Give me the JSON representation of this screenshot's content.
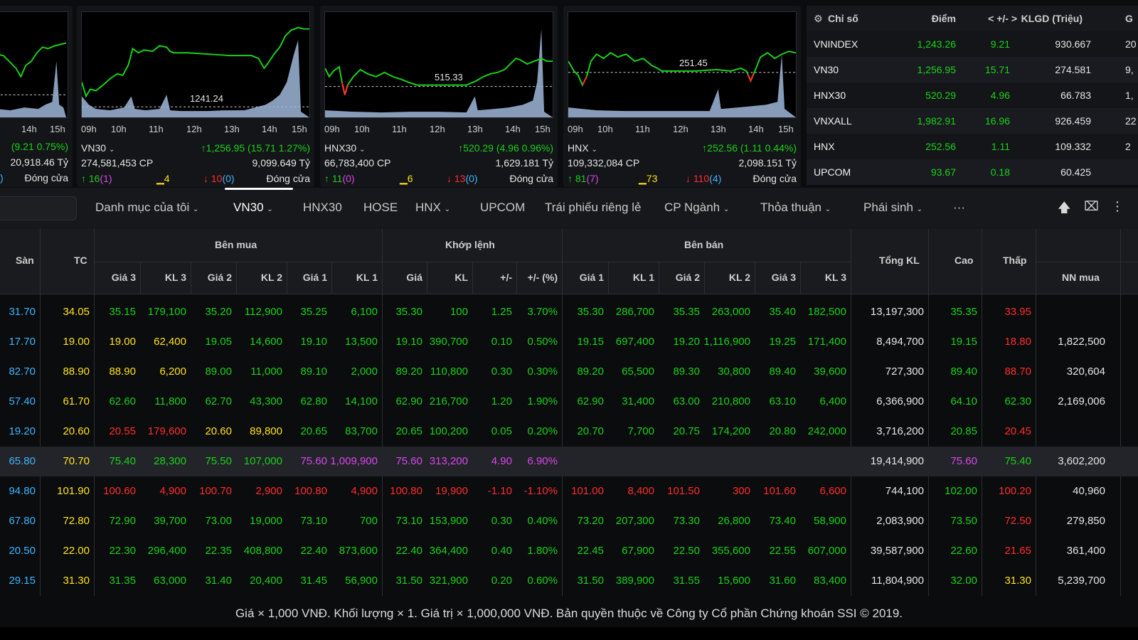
{
  "cards": [
    {
      "times": [
        "14h",
        "15h"
      ],
      "row1_right": "(9.21 0.75%)",
      "row2_right": "20,918.46 Tỷ",
      "row3_status": "Đóng cửa",
      "row3_left": ")"
    },
    {
      "ref_label": "1241.24",
      "times": [
        "09h",
        "10h",
        "11h",
        "12h",
        "13h",
        "14h",
        "15h"
      ],
      "name": "VN30",
      "change": "1,256.95 (15.71 1.27%)",
      "volume": "274,581,453 CP",
      "value": "9,099.649 Tỷ",
      "up_count": "16",
      "ceil_count": "(1)",
      "ref_count": "4",
      "down_count": "10",
      "floor_count": "(0)",
      "status": "Đóng cửa"
    },
    {
      "ref_label": "515.33",
      "times": [
        "09h",
        "10h",
        "11h",
        "12h",
        "13h",
        "14h",
        "15h"
      ],
      "name": "HNX30",
      "change": "520.29 (4.96 0.96%)",
      "volume": "66,783,400 CP",
      "value": "1,629.181 Tỷ",
      "up_count": "11",
      "ceil_count": "(0)",
      "ref_count": "6",
      "down_count": "13",
      "floor_count": "(0)",
      "status": "Đóng cửa"
    },
    {
      "ref_label": "251.45",
      "times": [
        "09h",
        "10h",
        "11h",
        "12h",
        "13h",
        "14h",
        "15h"
      ],
      "name": "HNX",
      "change": "252.56 (1.11 0.44%)",
      "volume": "109,332,084 CP",
      "value": "2,098.151 Tỷ",
      "up_count": "81",
      "ceil_count": "(7)",
      "ref_count": "73",
      "down_count": "110",
      "floor_count": "(4)",
      "status": "Đóng cửa"
    }
  ],
  "index_table": {
    "headers": [
      "Chỉ số",
      "Điểm",
      "< +/- >",
      "KLGD (Triệu)",
      "G"
    ],
    "rows": [
      {
        "name": "VNINDEX",
        "point": "1,243.26",
        "change": "9.21",
        "volume": "930.667",
        "extra": "20"
      },
      {
        "name": "VN30",
        "point": "1,256.95",
        "change": "15.71",
        "volume": "274.581",
        "extra": "9,"
      },
      {
        "name": "HNX30",
        "point": "520.29",
        "change": "4.96",
        "volume": "66.783",
        "extra": "1,"
      },
      {
        "name": "VNXALL",
        "point": "1,982.91",
        "change": "16.96",
        "volume": "926.459",
        "extra": "22"
      },
      {
        "name": "HNX",
        "point": "252.56",
        "change": "1.11",
        "volume": "109.332",
        "extra": "2"
      },
      {
        "name": "UPCOM",
        "point": "93.67",
        "change": "0.18",
        "volume": "60.425",
        "extra": ""
      }
    ]
  },
  "nav": {
    "tabs": [
      "Danh mục của tôi",
      "VN30",
      "HNX30",
      "HOSE",
      "HNX",
      "UPCOM",
      "Trái phiếu riêng lẻ",
      "CP Ngành",
      "Thỏa thuận",
      "Phái sinh",
      "···"
    ]
  },
  "board": {
    "groups": {
      "buy": "Bên mua",
      "match": "Khớp lệnh",
      "sell": "Bên bán"
    },
    "headers": {
      "san": "Sàn",
      "tc": "TC",
      "g3": "Giá 3",
      "k3": "KL 3",
      "g2": "Giá 2",
      "k2": "KL 2",
      "g1": "Giá 1",
      "k1": "KL 1",
      "mg": "Giá",
      "mk": "KL",
      "mc": "+/-",
      "mp": "+/- (%)",
      "s1": "Giá 1",
      "sk1": "KL 1",
      "s2": "Giá 2",
      "sk2": "KL 2",
      "s3": "Giá 3",
      "sk3": "KL 3",
      "tong": "Tổng KL",
      "cao": "Cao",
      "thap": "Thấp",
      "nn": "NN mua"
    },
    "rows": [
      [
        "31.70",
        "34.05",
        "35.15",
        "179,100",
        "35.20",
        "112,900",
        "35.25",
        "6,100",
        "35.30",
        "100",
        "1.25",
        "3.70%",
        "35.30",
        "286,700",
        "35.35",
        "263,000",
        "35.40",
        "182,500",
        "13,197,300",
        "35.35",
        "33.95",
        ""
      ],
      [
        "17.70",
        "19.00",
        "19.00",
        "62,400",
        "19.05",
        "14,600",
        "19.10",
        "13,500",
        "19.10",
        "390,700",
        "0.10",
        "0.50%",
        "19.15",
        "697,400",
        "19.20",
        "1,116,900",
        "19.25",
        "171,400",
        "8,494,700",
        "19.15",
        "18.80",
        "1,822,500"
      ],
      [
        "82.70",
        "88.90",
        "88.90",
        "6,200",
        "89.00",
        "11,000",
        "89.10",
        "2,000",
        "89.20",
        "110,800",
        "0.30",
        "0.30%",
        "89.20",
        "65,500",
        "89.30",
        "30,800",
        "89.40",
        "39,600",
        "727,300",
        "89.40",
        "88.70",
        "320,604"
      ],
      [
        "57.40",
        "61.70",
        "62.60",
        "11,800",
        "62.70",
        "43,300",
        "62.80",
        "14,100",
        "62.90",
        "216,700",
        "1.20",
        "1.90%",
        "62.90",
        "31,400",
        "63.00",
        "210,800",
        "63.10",
        "6,400",
        "6,366,900",
        "64.10",
        "62.30",
        "2,169,006"
      ],
      [
        "19.20",
        "20.60",
        "20.55",
        "179,600",
        "20.60",
        "89,800",
        "20.65",
        "83,700",
        "20.65",
        "100,200",
        "0.05",
        "0.20%",
        "20.70",
        "7,700",
        "20.75",
        "174,200",
        "20.80",
        "242,000",
        "3,716,200",
        "20.85",
        "20.45",
        ""
      ],
      [
        "65.80",
        "70.70",
        "75.40",
        "28,300",
        "75.50",
        "107,000",
        "75.60",
        "1,009,900",
        "75.60",
        "313,200",
        "4.90",
        "6.90%",
        "",
        "",
        "",
        "",
        "",
        "",
        "19,414,900",
        "75.60",
        "75.40",
        "3,602,200"
      ],
      [
        "94.80",
        "101.90",
        "100.60",
        "4,900",
        "100.70",
        "2,900",
        "100.80",
        "4,900",
        "100.80",
        "19,900",
        "-1.10",
        "-1.10%",
        "101.00",
        "8,400",
        "101.50",
        "300",
        "101.60",
        "6,600",
        "744,100",
        "102.00",
        "100.20",
        "40,960"
      ],
      [
        "67.80",
        "72.80",
        "72.90",
        "39,700",
        "73.00",
        "19,000",
        "73.10",
        "700",
        "73.10",
        "153,900",
        "0.30",
        "0.40%",
        "73.20",
        "207,300",
        "73.30",
        "26,800",
        "73.40",
        "58,900",
        "2,083,900",
        "73.50",
        "72.50",
        "279,850"
      ],
      [
        "20.50",
        "22.00",
        "22.30",
        "296,400",
        "22.35",
        "408,800",
        "22.40",
        "873,600",
        "22.40",
        "364,400",
        "0.40",
        "1.80%",
        "22.45",
        "67,900",
        "22.50",
        "355,600",
        "22.55",
        "607,000",
        "39,587,900",
        "22.60",
        "21.65",
        "361,400"
      ],
      [
        "29.15",
        "31.30",
        "31.35",
        "63,000",
        "31.40",
        "20,400",
        "31.45",
        "56,900",
        "31.50",
        "321,900",
        "0.20",
        "0.60%",
        "31.50",
        "389,900",
        "31.55",
        "15,600",
        "31.60",
        "83,400",
        "11,804,900",
        "32.00",
        "31.30",
        "5,239,700"
      ]
    ],
    "colors": [
      [
        "fl",
        "rf",
        "up",
        "up",
        "up",
        "up",
        "up",
        "up",
        "up",
        "up",
        "up",
        "up",
        "up",
        "up",
        "up",
        "up",
        "up",
        "up",
        "wt",
        "up",
        "dn",
        "wt"
      ],
      [
        "fl",
        "rf",
        "rf",
        "rf",
        "up",
        "up",
        "up",
        "up",
        "up",
        "up",
        "up",
        "up",
        "up",
        "up",
        "up",
        "up",
        "up",
        "up",
        "wt",
        "up",
        "dn",
        "wt"
      ],
      [
        "fl",
        "rf",
        "rf",
        "rf",
        "up",
        "up",
        "up",
        "up",
        "up",
        "up",
        "up",
        "up",
        "up",
        "up",
        "up",
        "up",
        "up",
        "up",
        "wt",
        "up",
        "dn",
        "wt"
      ],
      [
        "fl",
        "rf",
        "up",
        "up",
        "up",
        "up",
        "up",
        "up",
        "up",
        "up",
        "up",
        "up",
        "up",
        "up",
        "up",
        "up",
        "up",
        "up",
        "wt",
        "up",
        "up",
        "wt"
      ],
      [
        "fl",
        "rf",
        "dn",
        "dn",
        "rf",
        "rf",
        "up",
        "up",
        "up",
        "up",
        "up",
        "up",
        "up",
        "up",
        "up",
        "up",
        "up",
        "up",
        "wt",
        "up",
        "dn",
        "wt"
      ],
      [
        "fl",
        "rf",
        "up",
        "up",
        "up",
        "up",
        "ce",
        "ce",
        "ce",
        "ce",
        "ce",
        "ce",
        "up",
        "up",
        "up",
        "up",
        "up",
        "up",
        "wt",
        "ce",
        "up",
        "wt"
      ],
      [
        "fl",
        "rf",
        "dn",
        "dn",
        "dn",
        "dn",
        "dn",
        "dn",
        "dn",
        "dn",
        "dn",
        "dn",
        "dn",
        "dn",
        "dn",
        "dn",
        "dn",
        "dn",
        "wt",
        "up",
        "dn",
        "wt"
      ],
      [
        "fl",
        "rf",
        "up",
        "up",
        "up",
        "up",
        "up",
        "up",
        "up",
        "up",
        "up",
        "up",
        "up",
        "up",
        "up",
        "up",
        "up",
        "up",
        "wt",
        "up",
        "dn",
        "wt"
      ],
      [
        "fl",
        "rf",
        "up",
        "up",
        "up",
        "up",
        "up",
        "up",
        "up",
        "up",
        "up",
        "up",
        "up",
        "up",
        "up",
        "up",
        "up",
        "up",
        "wt",
        "up",
        "dn",
        "wt"
      ],
      [
        "fl",
        "rf",
        "up",
        "up",
        "up",
        "up",
        "up",
        "up",
        "up",
        "up",
        "up",
        "up",
        "up",
        "up",
        "up",
        "up",
        "up",
        "up",
        "wt",
        "up",
        "rf",
        "wt"
      ]
    ]
  },
  "footer": "Giá × 1,000 VNĐ. Khối lượng × 1. Giá trị × 1,000,000 VNĐ. Bản quyền thuộc về Công ty Cổ phần Chứng khoán SSI © 2019.",
  "colors": {
    "up": "#19d319",
    "down": "#ff2d2d",
    "ceiling": "#d946ef",
    "floor": "#3db5ff",
    "reference": "#ffe21a"
  }
}
